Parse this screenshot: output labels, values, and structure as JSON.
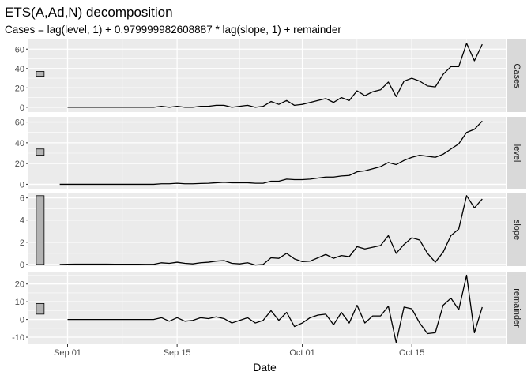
{
  "chart_data": {
    "type": "line",
    "title": "ETS(A,Ad,N) decomposition",
    "subtitle": "Cases = lag(level, 1) + 0.979999982608887 * lag(slope, 1) + remainder",
    "xlabel": "Date",
    "x_ticks": [
      "Sep 01",
      "Sep 15",
      "Oct 01",
      "Oct 15"
    ],
    "x_tick_days": [
      0,
      14,
      30,
      44
    ],
    "xlim_days": [
      -5,
      56
    ],
    "grid": true,
    "colors": {
      "panel_bg": "#ebebeb",
      "grid": "#ffffff",
      "strip_bg": "#d9d9d9",
      "line": "#000000",
      "scale_bar": "#b3b3b3"
    },
    "panels": [
      {
        "name": "Cases",
        "ylim": [
          -5,
          70
        ],
        "yticks": [
          "0",
          "20",
          "40",
          "60"
        ],
        "ytick_values": [
          0,
          20,
          40,
          60
        ],
        "scale_bar": [
          32,
          37
        ],
        "x_start": 0,
        "values": [
          0,
          0,
          0,
          0,
          0,
          0,
          0,
          0,
          0,
          0,
          0,
          0,
          1,
          0,
          1,
          0,
          0,
          1,
          1,
          2,
          2,
          0,
          1,
          2,
          0,
          1,
          6,
          3,
          7,
          2,
          3,
          5,
          7,
          9,
          5,
          10,
          7,
          17,
          12,
          16,
          18,
          26,
          11,
          27,
          30,
          27,
          22,
          21,
          34,
          42,
          42,
          66,
          48,
          65
        ]
      },
      {
        "name": "level",
        "ylim": [
          -5,
          65
        ],
        "yticks": [
          "0",
          "20",
          "40",
          "60"
        ],
        "ytick_values": [
          0,
          20,
          40,
          60
        ],
        "scale_bar": [
          28,
          34
        ],
        "x_start": -1,
        "values": [
          0,
          0,
          0,
          0,
          0,
          0,
          0,
          0,
          0,
          0,
          0,
          0,
          0,
          0.5,
          0.5,
          1,
          0.5,
          0.5,
          0.8,
          1,
          1.5,
          2,
          1.5,
          1.5,
          1.5,
          1,
          1,
          3,
          3,
          5,
          4.5,
          4.5,
          5,
          6,
          7,
          7,
          8,
          8.5,
          12,
          13,
          15,
          17,
          21,
          19,
          23,
          26,
          28,
          27,
          26,
          29,
          34,
          39,
          50,
          53,
          61
        ]
      },
      {
        "name": "slope",
        "ylim": [
          -0.15,
          6.4
        ],
        "yticks": [
          "0",
          "2",
          "4",
          "6"
        ],
        "ytick_values": [
          0,
          2,
          4,
          6
        ],
        "scale_bar": [
          0,
          6.2
        ],
        "x_start": -1,
        "values": [
          0,
          0.02,
          0.03,
          0.03,
          0.03,
          0.03,
          0.03,
          0.02,
          0.02,
          0.02,
          0.02,
          0.01,
          0.01,
          0.15,
          0.1,
          0.2,
          0.1,
          0.05,
          0.15,
          0.2,
          0.3,
          0.35,
          0.1,
          0.05,
          0.15,
          -0.05,
          0,
          0.6,
          0.55,
          1,
          0.5,
          0.25,
          0.3,
          0.6,
          0.9,
          0.55,
          0.8,
          0.7,
          1.6,
          1.4,
          1.55,
          1.7,
          2.6,
          1,
          1.8,
          2.4,
          2.2,
          1,
          0.2,
          1.1,
          2.6,
          3.2,
          6.2,
          5.1,
          5.9
        ]
      },
      {
        "name": "remainder",
        "ylim": [
          -14,
          27
        ],
        "yticks": [
          "-10",
          "0",
          "10",
          "20"
        ],
        "ytick_values": [
          -10,
          0,
          10,
          20
        ],
        "scale_bar": [
          3,
          9
        ],
        "x_start": 0,
        "values": [
          0,
          0,
          0,
          0,
          0,
          0,
          0,
          0,
          0,
          0,
          0,
          0,
          1,
          -1,
          1,
          -1,
          -0.5,
          1,
          0.5,
          1.5,
          0.5,
          -2,
          -0.5,
          1,
          -2,
          -0.5,
          5,
          -0.5,
          4,
          -4,
          -2,
          1,
          2.5,
          3,
          -3,
          4,
          -2,
          8,
          -2,
          2,
          2,
          7.5,
          -13,
          7,
          6,
          -2,
          -8,
          -7.5,
          8,
          12,
          5.5,
          25,
          -7.5,
          7
        ]
      }
    ]
  }
}
